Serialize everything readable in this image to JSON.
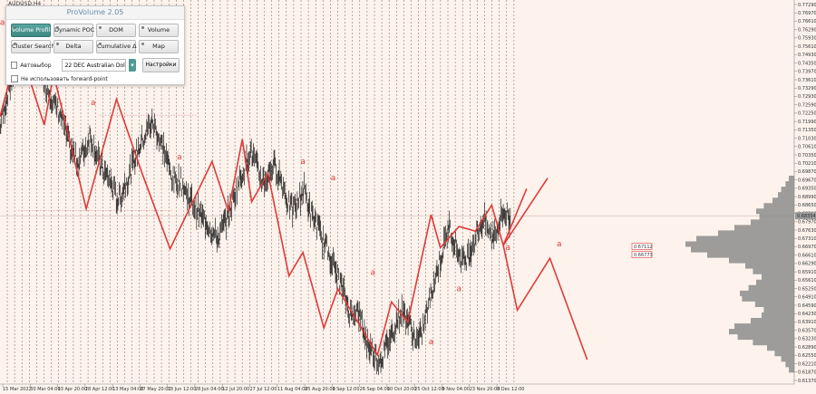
{
  "symbol": "AUDUSD,H4",
  "panel": {
    "title": "ProVolume 2.05",
    "buttons": [
      {
        "label": "Volume Profile",
        "active": true
      },
      {
        "label": "Dynamic POC",
        "active": false
      },
      {
        "label": "DOM",
        "active": false
      },
      {
        "label": "Volume",
        "active": false
      },
      {
        "label": "Cluster Search",
        "active": false
      },
      {
        "label": "Delta",
        "active": false
      },
      {
        "label": "Cumulative Δ",
        "active": false
      },
      {
        "label": "Map",
        "active": false
      }
    ],
    "auto_label": "Автовыбор",
    "instrument": "22 DEC Australian Dollar",
    "settings_label": "Настройки",
    "forward_label": "Не использовать forward-point"
  },
  "colors": {
    "background": "#fdf3ec",
    "wave": "#e03a3a",
    "candles": "#000000",
    "profile": "#8c8c8c",
    "grid": "#444444"
  },
  "chart_data": {
    "type": "line",
    "title": "",
    "xlabel": "",
    "ylabel": "",
    "ylim": [
      0.6137,
      0.7735
    ],
    "y_ticks": [
      "0.77290",
      "0.76970",
      "0.76610",
      "0.76290",
      "0.75930",
      "0.75610",
      "0.74930",
      "0.74350",
      "0.73970",
      "0.73610",
      "0.73290",
      "0.72930",
      "0.72590",
      "0.72250",
      "0.71990",
      "0.71350",
      "0.71030",
      "0.70610",
      "0.70350",
      "0.70210",
      "0.69870",
      "0.69670",
      "0.69350",
      "0.68990",
      "0.68650",
      "0.68310",
      "0.67970",
      "0.67630",
      "0.67310",
      "0.66970",
      "0.66610",
      "0.66290",
      "0.65910",
      "0.65610",
      "0.65250",
      "0.64910",
      "0.64590",
      "0.64230",
      "0.63910",
      "0.63570",
      "0.63230",
      "0.62890",
      "0.62550",
      "0.62210",
      "0.61870",
      "0.61370"
    ],
    "x_ticks": [
      "15 Mar 2022",
      "30 Mar 04:00",
      "13 Apr 20:00",
      "28 Apr 12:00",
      "13 May 04:00",
      "27 May 20:00",
      "13 Jun 12:00",
      "28 Jun 04:00",
      "12 Jul 20:00",
      "27 Jul 12:00",
      "11 Aug 04:00",
      "25 Aug 20:00",
      "9 Sep 12:00",
      "26 Sep 04:00",
      "10 Oct 20:00",
      "25 Oct 12:00",
      "9 Nov 04:00",
      "23 Nov 20:00",
      "8 Dec 12:00"
    ],
    "current_price": "0.68354",
    "level_markers": [
      "0.67112",
      "0.66773"
    ],
    "price_series": [
      0.721,
      0.728,
      0.736,
      0.742,
      0.7455,
      0.748,
      0.752,
      0.754,
      0.756,
      0.753,
      0.75,
      0.743,
      0.738,
      0.735,
      0.73,
      0.728,
      0.724,
      0.718,
      0.712,
      0.709,
      0.706,
      0.71,
      0.712,
      0.718,
      0.714,
      0.708,
      0.704,
      0.701,
      0.699,
      0.695,
      0.69,
      0.692,
      0.697,
      0.7,
      0.705,
      0.71,
      0.714,
      0.717,
      0.721,
      0.723,
      0.72,
      0.715,
      0.712,
      0.706,
      0.7,
      0.698,
      0.699,
      0.696,
      0.692,
      0.69,
      0.687,
      0.685,
      0.682,
      0.681,
      0.678,
      0.675,
      0.674,
      0.678,
      0.682,
      0.686,
      0.692,
      0.697,
      0.701,
      0.706,
      0.711,
      0.708,
      0.703,
      0.699,
      0.698,
      0.702,
      0.705,
      0.703,
      0.699,
      0.694,
      0.688,
      0.686,
      0.688,
      0.692,
      0.695,
      0.688,
      0.683,
      0.681,
      0.676,
      0.672,
      0.669,
      0.665,
      0.66,
      0.656,
      0.651,
      0.646,
      0.641,
      0.644,
      0.642,
      0.636,
      0.63,
      0.627,
      0.625,
      0.622,
      0.624,
      0.628,
      0.632,
      0.636,
      0.64,
      0.643,
      0.641,
      0.638,
      0.633,
      0.63,
      0.633,
      0.64,
      0.647,
      0.654,
      0.66,
      0.666,
      0.672,
      0.679,
      0.675,
      0.67,
      0.666,
      0.664,
      0.667,
      0.671,
      0.675,
      0.679,
      0.682,
      0.678,
      0.674,
      0.677,
      0.681,
      0.685,
      0.684,
      0.68
    ],
    "wave_path": [
      {
        "x": 0,
        "y": 0.7255
      },
      {
        "x": 9,
        "y": 0.7595
      },
      {
        "x": 13,
        "y": 0.7405
      },
      {
        "x": 19,
        "y": 0.722
      },
      {
        "x": 23,
        "y": 0.7435
      },
      {
        "x": 37,
        "y": 0.6865
      },
      {
        "x": 50,
        "y": 0.733
      },
      {
        "x": 61,
        "y": 0.7015
      },
      {
        "x": 73,
        "y": 0.6695
      },
      {
        "x": 91,
        "y": 0.7065
      },
      {
        "x": 98,
        "y": 0.6855
      },
      {
        "x": 104,
        "y": 0.716
      },
      {
        "x": 108,
        "y": 0.6895
      },
      {
        "x": 115,
        "y": 0.7015
      },
      {
        "x": 124,
        "y": 0.658
      },
      {
        "x": 130,
        "y": 0.668
      },
      {
        "x": 139,
        "y": 0.636
      },
      {
        "x": 145,
        "y": 0.6525
      },
      {
        "x": 162,
        "y": 0.6245
      },
      {
        "x": 168,
        "y": 0.647
      },
      {
        "x": 175,
        "y": 0.6385
      },
      {
        "x": 185,
        "y": 0.684
      },
      {
        "x": 189,
        "y": 0.67
      },
      {
        "x": 197,
        "y": 0.679
      },
      {
        "x": 204,
        "y": 0.677
      },
      {
        "x": 211,
        "y": 0.688
      },
      {
        "x": 216,
        "y": 0.671
      },
      {
        "x": 226,
        "y": 0.695
      }
    ],
    "wave_path_projection": [
      {
        "x": 216,
        "y": 0.671
      },
      {
        "x": 222,
        "y": 0.6435
      },
      {
        "x": 236,
        "y": 0.6655
      },
      {
        "x": 252,
        "y": 0.6225
      }
    ],
    "wave_labels": [
      {
        "text": "a",
        "x": 1,
        "y": 0.7645
      },
      {
        "text": "a",
        "x": 16,
        "y": 0.7612
      },
      {
        "text": "a",
        "x": 40,
        "y": 0.7305
      },
      {
        "text": "a",
        "x": 77,
        "y": 0.7075
      },
      {
        "text": "a",
        "x": 130,
        "y": 0.7055
      },
      {
        "text": "a",
        "x": 143,
        "y": 0.6985
      },
      {
        "text": "a",
        "x": 160,
        "y": 0.6585
      },
      {
        "text": "a",
        "x": 185,
        "y": 0.629
      },
      {
        "text": "a",
        "x": 197,
        "y": 0.6515
      },
      {
        "text": "a",
        "x": 218,
        "y": 0.669
      },
      {
        "text": "a",
        "x": 240,
        "y": 0.6705
      }
    ],
    "volume_profile": [
      0.05,
      0.08,
      0.12,
      0.15,
      0.2,
      0.28,
      0.35,
      0.32,
      0.4,
      0.55,
      0.7,
      0.9,
      1.0,
      0.95,
      0.8,
      0.6,
      0.45,
      0.38,
      0.3,
      0.35,
      0.42,
      0.5,
      0.48,
      0.36,
      0.28,
      0.3,
      0.4,
      0.55,
      0.6,
      0.52,
      0.38,
      0.25,
      0.18,
      0.12,
      0.08,
      0.05
    ]
  }
}
